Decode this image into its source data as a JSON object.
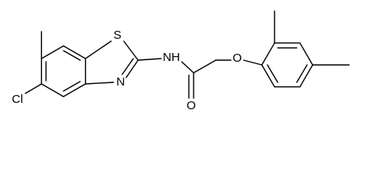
{
  "atoms": [
    {
      "label": "Cl"
    },
    {
      "label": "S"
    },
    {
      "label": "N"
    },
    {
      "label": "NH"
    },
    {
      "label": "O"
    },
    {
      "label": "O"
    }
  ]
}
